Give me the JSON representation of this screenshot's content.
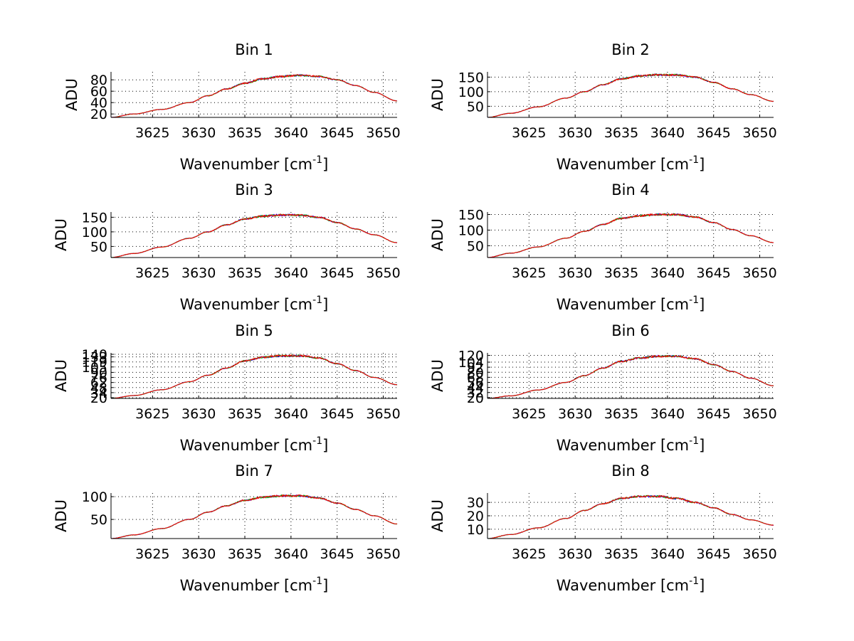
{
  "chart_data": [
    {
      "type": "line",
      "title": "Bin 1",
      "xlabel": "Wavenumber [cm",
      "xlabel_sup": "-1",
      "xlabel_end": "]",
      "ylabel": "ADU",
      "xlim": [
        3620.5,
        3651.5
      ],
      "ylim": [
        14,
        94
      ],
      "xticks": [
        3625,
        3630,
        3635,
        3640,
        3645,
        3650
      ],
      "yticks": [
        20,
        40,
        60,
        80
      ],
      "series": [
        {
          "name": "blue",
          "color": "#0000ff",
          "x": [
            3620.5,
            3623,
            3626,
            3629,
            3631,
            3633,
            3635,
            3637,
            3639,
            3641,
            3643,
            3645,
            3647,
            3649,
            3651.5
          ],
          "y": [
            14,
            20,
            28,
            40,
            52,
            64,
            74,
            82,
            86,
            88,
            86,
            80,
            70,
            58,
            43
          ]
        },
        {
          "name": "green",
          "color": "#00aa00",
          "x": [
            3620.5,
            3623,
            3626,
            3629,
            3631,
            3633,
            3635,
            3637,
            3639,
            3641,
            3643,
            3645,
            3647,
            3649,
            3651.5
          ],
          "y": [
            14,
            20,
            28,
            40,
            52,
            64,
            74,
            82,
            86,
            88,
            86,
            80,
            70,
            58,
            43
          ]
        },
        {
          "name": "red",
          "color": "#ff0000",
          "x": [
            3620.5,
            3623,
            3626,
            3629,
            3631,
            3633,
            3635,
            3637,
            3639,
            3641,
            3643,
            3645,
            3647,
            3649,
            3651.5
          ],
          "y": [
            14,
            20,
            28,
            40,
            52,
            64,
            74,
            82,
            86,
            88,
            86,
            80,
            70,
            58,
            43
          ]
        }
      ]
    },
    {
      "type": "line",
      "title": "Bin 2",
      "xlabel": "Wavenumber [cm",
      "xlabel_sup": "-1",
      "xlabel_end": "]",
      "ylabel": "ADU",
      "xlim": [
        3620.5,
        3651.5
      ],
      "ylim": [
        12,
        168
      ],
      "xticks": [
        3625,
        3630,
        3635,
        3640,
        3645,
        3650
      ],
      "yticks": [
        50,
        100,
        150
      ],
      "series": [
        {
          "name": "blue",
          "color": "#0000ff",
          "x": [
            3620.5,
            3623,
            3626,
            3629,
            3631,
            3633,
            3635,
            3637,
            3639,
            3641,
            3643,
            3645,
            3647,
            3649,
            3651.5
          ],
          "y": [
            12,
            26,
            48,
            78,
            100,
            124,
            144,
            154,
            158,
            157,
            150,
            132,
            110,
            90,
            67
          ]
        },
        {
          "name": "green",
          "color": "#00aa00",
          "x": [
            3620.5,
            3623,
            3626,
            3629,
            3631,
            3633,
            3635,
            3637,
            3639,
            3641,
            3643,
            3645,
            3647,
            3649,
            3651.5
          ],
          "y": [
            12,
            26,
            48,
            78,
            100,
            124,
            144,
            154,
            158,
            157,
            150,
            132,
            110,
            90,
            67
          ]
        },
        {
          "name": "red",
          "color": "#ff0000",
          "x": [
            3620.5,
            3623,
            3626,
            3629,
            3631,
            3633,
            3635,
            3637,
            3639,
            3641,
            3643,
            3645,
            3647,
            3649,
            3651.5
          ],
          "y": [
            12,
            26,
            48,
            78,
            100,
            124,
            144,
            154,
            158,
            157,
            150,
            132,
            110,
            90,
            67
          ]
        }
      ]
    },
    {
      "type": "line",
      "title": "Bin 3",
      "xlabel": "Wavenumber [cm",
      "xlabel_sup": "-1",
      "xlabel_end": "]",
      "ylabel": "ADU",
      "xlim": [
        3620.5,
        3651.5
      ],
      "ylim": [
        12,
        168
      ],
      "xticks": [
        3625,
        3630,
        3635,
        3640,
        3645,
        3650
      ],
      "yticks": [
        50,
        100,
        150
      ],
      "series": [
        {
          "name": "blue",
          "color": "#0000ff",
          "x": [
            3620.5,
            3623,
            3626,
            3629,
            3631,
            3633,
            3635,
            3637,
            3639,
            3641,
            3643,
            3645,
            3647,
            3649,
            3651.5
          ],
          "y": [
            12,
            26,
            48,
            78,
            100,
            124,
            144,
            154,
            158,
            157,
            150,
            132,
            110,
            90,
            63
          ]
        },
        {
          "name": "green",
          "color": "#00aa00",
          "x": [
            3620.5,
            3623,
            3626,
            3629,
            3631,
            3633,
            3635,
            3637,
            3639,
            3641,
            3643,
            3645,
            3647,
            3649,
            3651.5
          ],
          "y": [
            12,
            26,
            48,
            78,
            100,
            124,
            144,
            154,
            158,
            157,
            150,
            132,
            110,
            90,
            63
          ]
        },
        {
          "name": "red",
          "color": "#ff0000",
          "x": [
            3620.5,
            3623,
            3626,
            3629,
            3631,
            3633,
            3635,
            3637,
            3639,
            3641,
            3643,
            3645,
            3647,
            3649,
            3651.5
          ],
          "y": [
            12,
            26,
            48,
            78,
            100,
            124,
            144,
            154,
            158,
            157,
            150,
            132,
            110,
            90,
            63
          ]
        }
      ]
    },
    {
      "type": "line",
      "title": "Bin 4",
      "xlabel": "Wavenumber [cm",
      "xlabel_sup": "-1",
      "xlabel_end": "]",
      "ylabel": "ADU",
      "xlim": [
        3620.5,
        3651.5
      ],
      "ylim": [
        12,
        158
      ],
      "xticks": [
        3625,
        3630,
        3635,
        3640,
        3645,
        3650
      ],
      "yticks": [
        50,
        100,
        150
      ],
      "series": [
        {
          "name": "blue",
          "color": "#0000ff",
          "x": [
            3620.5,
            3623,
            3626,
            3629,
            3631,
            3633,
            3635,
            3637,
            3639,
            3641,
            3643,
            3645,
            3647,
            3649,
            3651.5
          ],
          "y": [
            12,
            26,
            46,
            74,
            96,
            118,
            138,
            146,
            150,
            150,
            142,
            124,
            102,
            82,
            60
          ]
        },
        {
          "name": "green",
          "color": "#00aa00",
          "x": [
            3620.5,
            3623,
            3626,
            3629,
            3631,
            3633,
            3635,
            3637,
            3639,
            3641,
            3643,
            3645,
            3647,
            3649,
            3651.5
          ],
          "y": [
            12,
            26,
            46,
            74,
            96,
            118,
            138,
            146,
            150,
            150,
            142,
            124,
            102,
            82,
            60
          ]
        },
        {
          "name": "red",
          "color": "#ff0000",
          "x": [
            3620.5,
            3623,
            3626,
            3629,
            3631,
            3633,
            3635,
            3637,
            3639,
            3641,
            3643,
            3645,
            3647,
            3649,
            3651.5
          ],
          "y": [
            12,
            26,
            46,
            74,
            96,
            118,
            138,
            146,
            150,
            150,
            142,
            124,
            102,
            82,
            60
          ]
        }
      ]
    },
    {
      "type": "line",
      "title": "Bin 5",
      "xlabel": "Wavenumber [cm",
      "xlabel_sup": "-1",
      "xlabel_end": "]",
      "ylabel": "ADU",
      "xlim": [
        3620.5,
        3651.5
      ],
      "ylim": [
        18,
        144
      ],
      "xticks": [
        3625,
        3630,
        3635,
        3640,
        3645,
        3650
      ],
      "yticks": [
        20,
        34,
        48,
        62,
        76,
        90,
        105,
        119,
        133,
        140
      ],
      "yticklabels": [
        "20",
        "34",
        "48",
        "62",
        "76",
        "90",
        "105",
        "119",
        "133",
        "140"
      ],
      "series": [
        {
          "name": "blue",
          "color": "#0000ff",
          "x": [
            3620.5,
            3623,
            3626,
            3629,
            3631,
            3633,
            3635,
            3637,
            3639,
            3641,
            3643,
            3645,
            3647,
            3649,
            3651.5
          ],
          "y": [
            18,
            26,
            42,
            64,
            82,
            102,
            122,
            132,
            136,
            136,
            130,
            114,
            95,
            76,
            56
          ]
        },
        {
          "name": "green",
          "color": "#00aa00",
          "x": [
            3620.5,
            3623,
            3626,
            3629,
            3631,
            3633,
            3635,
            3637,
            3639,
            3641,
            3643,
            3645,
            3647,
            3649,
            3651.5
          ],
          "y": [
            18,
            26,
            42,
            64,
            82,
            102,
            122,
            132,
            136,
            136,
            130,
            114,
            95,
            76,
            56
          ]
        },
        {
          "name": "red",
          "color": "#ff0000",
          "x": [
            3620.5,
            3623,
            3626,
            3629,
            3631,
            3633,
            3635,
            3637,
            3639,
            3641,
            3643,
            3645,
            3647,
            3649,
            3651.5
          ],
          "y": [
            18,
            26,
            42,
            64,
            82,
            102,
            122,
            132,
            136,
            136,
            130,
            114,
            95,
            76,
            56
          ]
        }
      ]
    },
    {
      "type": "line",
      "title": "Bin 6",
      "xlabel": "Wavenumber [cm",
      "xlabel_sup": "-1",
      "xlabel_end": "]",
      "ylabel": "ADU",
      "xlim": [
        3620.5,
        3651.5
      ],
      "ylim": [
        18,
        126
      ],
      "xticks": [
        3625,
        3630,
        3635,
        3640,
        3645,
        3650
      ],
      "yticks": [
        20,
        32,
        44,
        56,
        68,
        80,
        92,
        104,
        120
      ],
      "yticklabels": [
        "20",
        "32",
        "44",
        "56",
        "68",
        "80",
        "92",
        "104",
        "120"
      ],
      "series": [
        {
          "name": "blue",
          "color": "#0000ff",
          "x": [
            3620.5,
            3623,
            3626,
            3629,
            3631,
            3633,
            3635,
            3637,
            3639,
            3641,
            3643,
            3645,
            3647,
            3649,
            3651.5
          ],
          "y": [
            18,
            24,
            38,
            56,
            72,
            90,
            106,
            114,
            118,
            118,
            112,
            98,
            82,
            66,
            48
          ]
        },
        {
          "name": "green",
          "color": "#00aa00",
          "x": [
            3620.5,
            3623,
            3626,
            3629,
            3631,
            3633,
            3635,
            3637,
            3639,
            3641,
            3643,
            3645,
            3647,
            3649,
            3651.5
          ],
          "y": [
            18,
            24,
            38,
            56,
            72,
            90,
            106,
            114,
            118,
            118,
            112,
            98,
            82,
            66,
            48
          ]
        },
        {
          "name": "red",
          "color": "#ff0000",
          "x": [
            3620.5,
            3623,
            3626,
            3629,
            3631,
            3633,
            3635,
            3637,
            3639,
            3641,
            3643,
            3645,
            3647,
            3649,
            3651.5
          ],
          "y": [
            18,
            24,
            38,
            56,
            72,
            90,
            106,
            114,
            118,
            118,
            112,
            98,
            82,
            66,
            48
          ]
        }
      ]
    },
    {
      "type": "line",
      "title": "Bin 7",
      "xlabel": "Wavenumber [cm",
      "xlabel_sup": "-1",
      "xlabel_end": "]",
      "ylabel": "ADU",
      "xlim": [
        3620.5,
        3651.5
      ],
      "ylim": [
        8,
        108
      ],
      "xticks": [
        3625,
        3630,
        3635,
        3640,
        3645,
        3650
      ],
      "yticks": [
        50,
        100
      ],
      "series": [
        {
          "name": "blue",
          "color": "#0000ff",
          "x": [
            3620.5,
            3623,
            3626,
            3629,
            3631,
            3633,
            3635,
            3637,
            3639,
            3641,
            3643,
            3645,
            3647,
            3649,
            3651.5
          ],
          "y": [
            8,
            16,
            30,
            50,
            66,
            80,
            92,
            99,
            102,
            102,
            97,
            86,
            72,
            58,
            40
          ]
        },
        {
          "name": "green",
          "color": "#00aa00",
          "x": [
            3620.5,
            3623,
            3626,
            3629,
            3631,
            3633,
            3635,
            3637,
            3639,
            3641,
            3643,
            3645,
            3647,
            3649,
            3651.5
          ],
          "y": [
            8,
            16,
            30,
            50,
            66,
            80,
            92,
            99,
            102,
            102,
            97,
            86,
            72,
            58,
            40
          ]
        },
        {
          "name": "red",
          "color": "#ff0000",
          "x": [
            3620.5,
            3623,
            3626,
            3629,
            3631,
            3633,
            3635,
            3637,
            3639,
            3641,
            3643,
            3645,
            3647,
            3649,
            3651.5
          ],
          "y": [
            8,
            16,
            30,
            50,
            66,
            80,
            92,
            99,
            102,
            102,
            97,
            86,
            72,
            58,
            40
          ]
        }
      ]
    },
    {
      "type": "line",
      "title": "Bin 8",
      "xlabel": "Wavenumber [cm",
      "xlabel_sup": "-1",
      "xlabel_end": "]",
      "ylabel": "ADU",
      "xlim": [
        3620.5,
        3651.5
      ],
      "ylim": [
        3,
        37
      ],
      "xticks": [
        3625,
        3630,
        3635,
        3640,
        3645,
        3650
      ],
      "yticks": [
        10,
        20,
        30
      ],
      "series": [
        {
          "name": "blue",
          "color": "#0000ff",
          "x": [
            3620.5,
            3623,
            3626,
            3629,
            3631,
            3633,
            3635,
            3637,
            3639,
            3641,
            3643,
            3645,
            3647,
            3649,
            3651.5
          ],
          "y": [
            3,
            6,
            11,
            18,
            24,
            29,
            33,
            34.5,
            34.5,
            33,
            30,
            26,
            21,
            17,
            13
          ]
        },
        {
          "name": "green",
          "color": "#00aa00",
          "x": [
            3620.5,
            3623,
            3626,
            3629,
            3631,
            3633,
            3635,
            3637,
            3639,
            3641,
            3643,
            3645,
            3647,
            3649,
            3651.5
          ],
          "y": [
            3,
            6,
            11,
            18,
            24,
            29,
            33,
            34.5,
            34.5,
            33,
            30,
            26,
            21,
            17,
            13
          ]
        },
        {
          "name": "red",
          "color": "#ff0000",
          "x": [
            3620.5,
            3623,
            3626,
            3629,
            3631,
            3633,
            3635,
            3637,
            3639,
            3641,
            3643,
            3645,
            3647,
            3649,
            3651.5
          ],
          "y": [
            3,
            6,
            11,
            18,
            24,
            29,
            33,
            34.5,
            34.5,
            33,
            30,
            26,
            21,
            17,
            13
          ]
        }
      ]
    }
  ]
}
